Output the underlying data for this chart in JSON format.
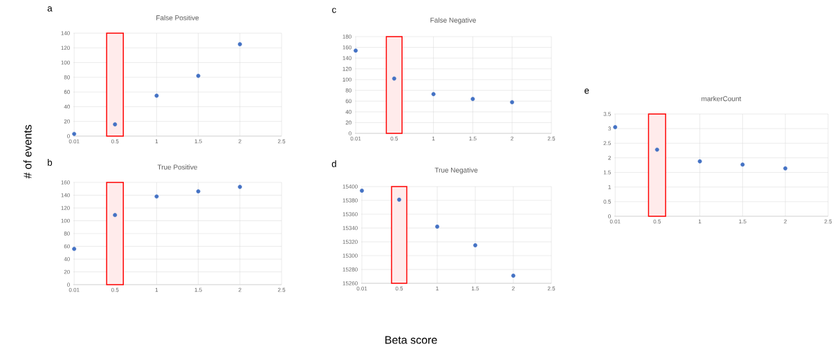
{
  "chart_data": [
    {
      "type": "scatter",
      "title": "False Positive",
      "ylabel": "# of events",
      "annotations": [
        "a"
      ],
      "x": [
        0.01,
        0.5,
        1,
        1.5,
        2
      ],
      "series": [
        {
          "color": "#4472c4",
          "values": [
            3,
            16,
            55,
            82,
            125
          ]
        }
      ],
      "xlim": [
        0,
        2.5
      ],
      "xticks": [
        0.01,
        0.5,
        1,
        1.5,
        2,
        2.5
      ],
      "ylim": [
        0,
        140
      ],
      "yticks": [
        0,
        20,
        40,
        60,
        80,
        100,
        120,
        140
      ],
      "bands": [
        {
          "axis": "x",
          "from": 0.4,
          "to": 0.6,
          "color": "#ff0000"
        }
      ],
      "grid": true,
      "marker": "circle"
    },
    {
      "type": "scatter",
      "title": "True Positive",
      "annotations": [
        "b"
      ],
      "x": [
        0.01,
        0.5,
        1,
        1.5,
        2
      ],
      "series": [
        {
          "color": "#4472c4",
          "values": [
            56,
            109,
            138,
            146,
            153
          ]
        }
      ],
      "xlim": [
        0,
        2.5
      ],
      "xticks": [
        0.01,
        0.5,
        1,
        1.5,
        2,
        2.5
      ],
      "ylim": [
        0,
        160
      ],
      "yticks": [
        0,
        20,
        40,
        60,
        80,
        100,
        120,
        140,
        160
      ],
      "bands": [
        {
          "axis": "x",
          "from": 0.4,
          "to": 0.6,
          "color": "#ff0000"
        }
      ],
      "grid": true,
      "marker": "circle"
    },
    {
      "type": "scatter",
      "title": "False Negative",
      "annotations": [
        "c"
      ],
      "x": [
        0.01,
        0.5,
        1,
        1.5,
        2
      ],
      "series": [
        {
          "color": "#4472c4",
          "values": [
            154,
            102,
            73,
            64,
            58
          ]
        }
      ],
      "xlim": [
        0,
        2.5
      ],
      "xticks": [
        0.01,
        0.5,
        1,
        1.5,
        2,
        2.5
      ],
      "ylim": [
        0,
        180
      ],
      "yticks": [
        0,
        20,
        40,
        60,
        80,
        100,
        120,
        140,
        160,
        180
      ],
      "bands": [
        {
          "axis": "x",
          "from": 0.4,
          "to": 0.6,
          "color": "#ff0000"
        }
      ],
      "grid": true,
      "marker": "circle"
    },
    {
      "type": "scatter",
      "title": "True Negative",
      "xlabel": "Beta score",
      "annotations": [
        "d"
      ],
      "x": [
        0.01,
        0.5,
        1,
        1.5,
        2
      ],
      "series": [
        {
          "color": "#4472c4",
          "values": [
            15394,
            15381,
            15342,
            15315,
            15271
          ]
        }
      ],
      "xlim": [
        0,
        2.5
      ],
      "xticks": [
        0.01,
        0.5,
        1,
        1.5,
        2,
        2.5
      ],
      "ylim": [
        15260,
        15400
      ],
      "yticks": [
        15260,
        15280,
        15300,
        15320,
        15340,
        15360,
        15380,
        15400
      ],
      "bands": [
        {
          "axis": "x",
          "from": 0.4,
          "to": 0.6,
          "color": "#ff0000"
        }
      ],
      "grid": true,
      "marker": "circle"
    },
    {
      "type": "scatter",
      "title": "markerCount",
      "annotations": [
        "e"
      ],
      "x": [
        0.01,
        0.5,
        1,
        1.5,
        2
      ],
      "series": [
        {
          "color": "#4472c4",
          "values": [
            3.05,
            2.28,
            1.88,
            1.77,
            1.64
          ]
        }
      ],
      "xlim": [
        0,
        2.5
      ],
      "xticks": [
        0.01,
        0.5,
        1,
        1.5,
        2,
        2.5
      ],
      "ylim": [
        0,
        3.5
      ],
      "yticks": [
        0,
        0.5,
        1,
        1.5,
        2,
        2.5,
        3,
        3.5
      ],
      "bands": [
        {
          "axis": "x",
          "from": 0.4,
          "to": 0.6,
          "color": "#ff0000"
        }
      ],
      "grid": true,
      "marker": "circle"
    }
  ]
}
